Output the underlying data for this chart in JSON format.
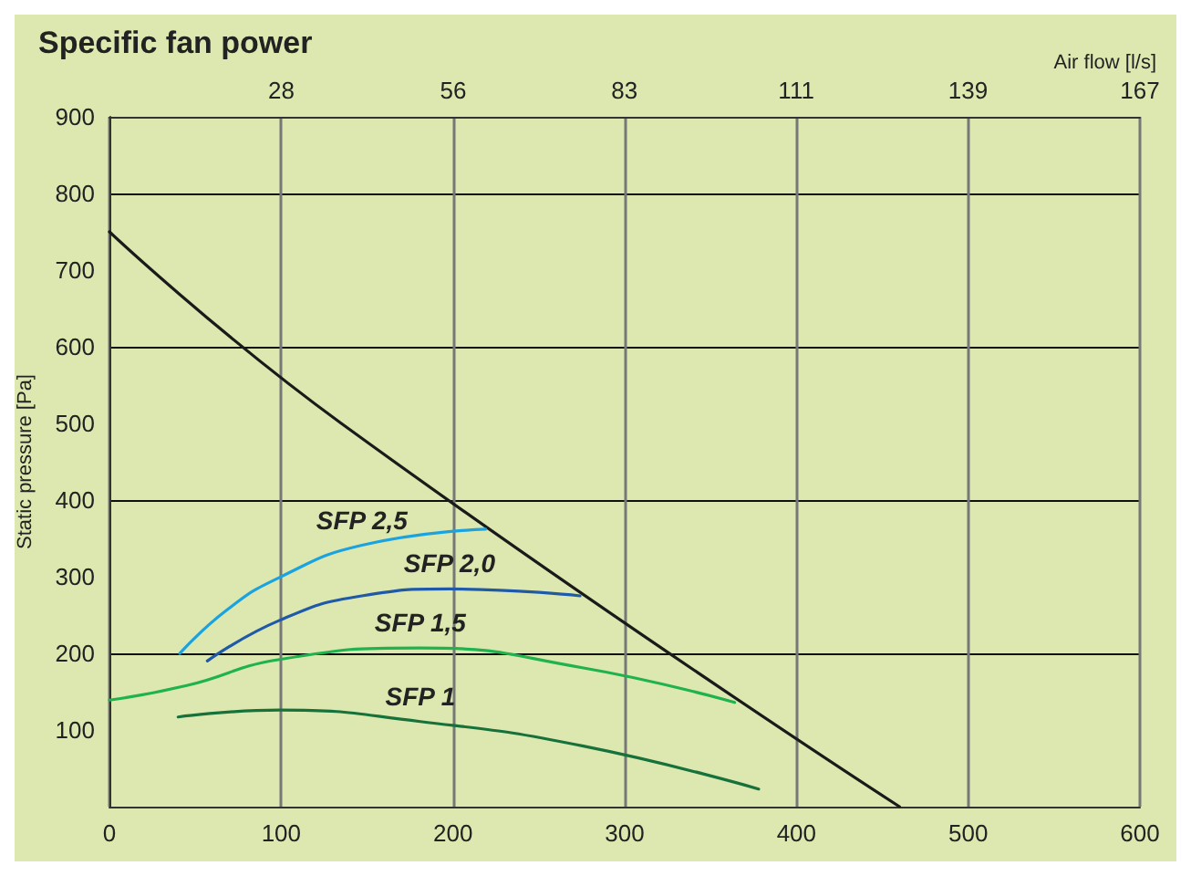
{
  "chart_data": {
    "type": "line",
    "title": "Specific fan power",
    "ylabel": "Static pressure [Pa]",
    "x2label": "Air flow [l/s]",
    "xlim": [
      0,
      600
    ],
    "xticks": [
      0,
      100,
      200,
      300,
      400,
      500,
      600
    ],
    "x2lim": [
      0,
      166.7
    ],
    "x2ticks": [
      {
        "value": 27.8,
        "label": "28"
      },
      {
        "value": 55.6,
        "label": "56"
      },
      {
        "value": 83.3,
        "label": "83"
      },
      {
        "value": 111.1,
        "label": "111"
      },
      {
        "value": 138.9,
        "label": "139"
      },
      {
        "value": 166.7,
        "label": "167"
      }
    ],
    "ylim": [
      0,
      900
    ],
    "yticks": [
      100,
      200,
      300,
      400,
      500,
      600,
      700,
      800,
      900
    ],
    "grid": true,
    "legend": false,
    "marker": "none",
    "line_style": "solid",
    "series": [
      {
        "color": "#1a1a1a",
        "x": [
          0,
          135,
          460
        ],
        "values": [
          750,
          500,
          0
        ]
      },
      {
        "name": "SFP 2,5",
        "color": "#1ba3e0",
        "x": [
          41,
          68,
          99,
          147,
          219
        ],
        "values": [
          200,
          256,
          299,
          341,
          362
        ]
      },
      {
        "name": "SFP 2,0",
        "color": "#1f5aa8",
        "x": [
          57,
          99,
          147,
          198,
          274
        ],
        "values": [
          190,
          243,
          275,
          284,
          275
        ]
      },
      {
        "name": "SFP 1,5",
        "color": "#20b24e",
        "x": [
          0,
          45,
          99,
          181,
          276,
          364
        ],
        "values": [
          139,
          158,
          192,
          207,
          181,
          136
        ]
      },
      {
        "name": "SFP 1",
        "color": "#17713a",
        "x": [
          40,
          99,
          181,
          276,
          378
        ],
        "values": [
          117,
          126,
          111,
          79,
          23
        ]
      }
    ]
  }
}
